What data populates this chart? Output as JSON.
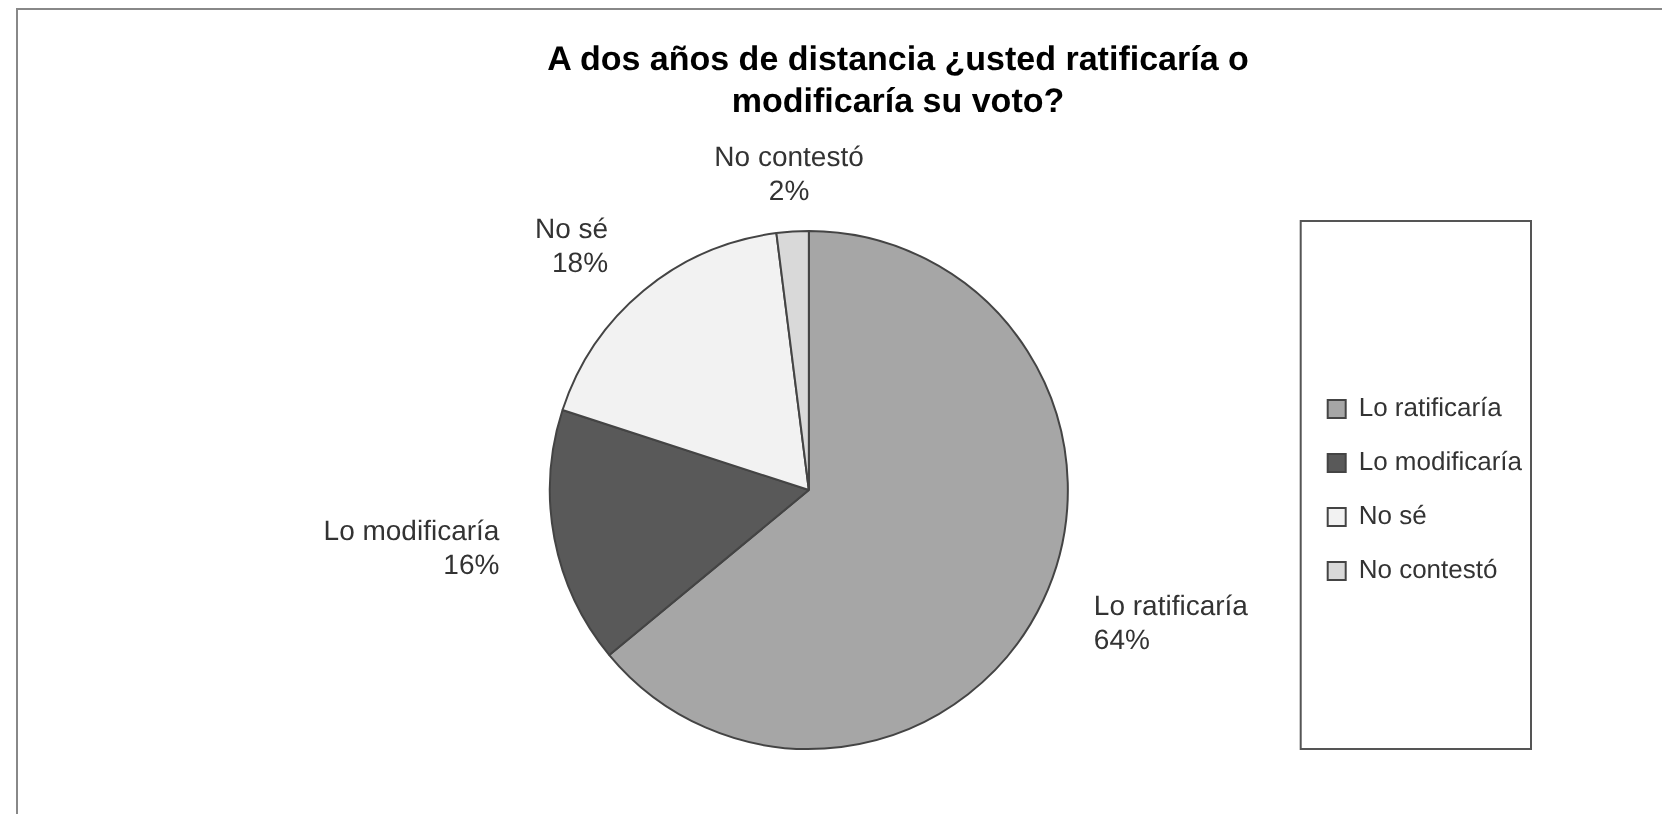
{
  "chart_data": {
    "type": "pie",
    "title": "A dos años de distancia ¿usted ratificaría o modificaría su voto?",
    "categories": [
      "Lo ratificaría",
      "Lo modificaría",
      "No sé",
      "No contestó"
    ],
    "values": [
      64,
      16,
      18,
      2
    ],
    "value_labels": [
      "64%",
      "16%",
      "18%",
      "2%"
    ],
    "colors": [
      "#a6a6a6",
      "#595959",
      "#f2f2f2",
      "#d9d9d9"
    ],
    "legend": "right"
  }
}
